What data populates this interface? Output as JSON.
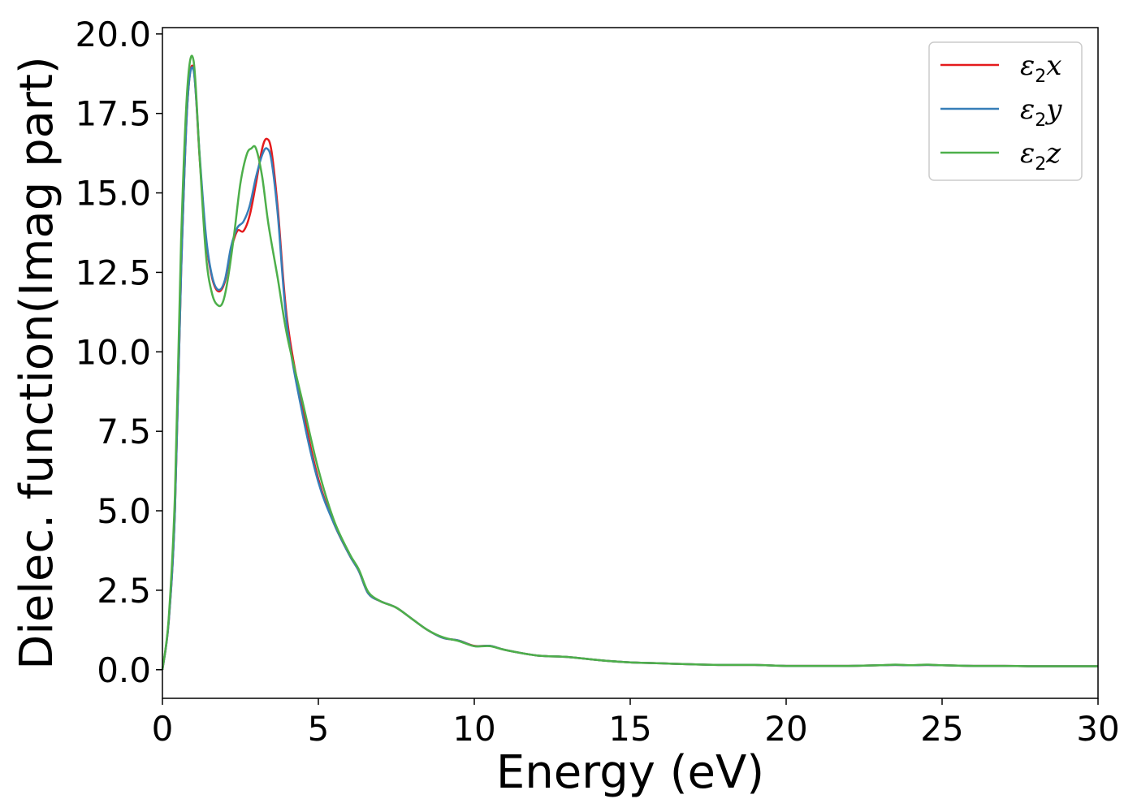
{
  "chart_data": {
    "type": "line",
    "title": "",
    "xlabel": "Energy (eV)",
    "ylabel": "Dielec. function(Imag part)",
    "xlim": [
      0,
      30
    ],
    "ylim": [
      -0.9,
      20.2
    ],
    "x_ticks": [
      0,
      5,
      10,
      15,
      20,
      25,
      30
    ],
    "x_tick_labels": [
      "0",
      "5",
      "10",
      "15",
      "20",
      "25",
      "30"
    ],
    "y_ticks": [
      0.0,
      2.5,
      5.0,
      7.5,
      10.0,
      12.5,
      15.0,
      17.5,
      20.0
    ],
    "y_tick_labels": [
      "0.0",
      "2.5",
      "5.0",
      "7.5",
      "10.0",
      "12.5",
      "15.0",
      "17.5",
      "20.0"
    ],
    "grid": false,
    "legend_position": "top-right",
    "series": [
      {
        "name_base": "ε",
        "name_sub": "2",
        "name_suffix": "x",
        "color": "#e41a1c",
        "x": [
          0,
          0.2,
          0.4,
          0.6,
          0.8,
          1.0,
          1.2,
          1.4,
          1.6,
          1.8,
          2.0,
          2.2,
          2.4,
          2.6,
          2.8,
          3.0,
          3.2,
          3.35,
          3.5,
          3.7,
          4.0,
          4.5,
          5.0,
          5.5,
          6.0,
          6.3,
          6.6,
          7.0,
          7.5,
          8.0,
          8.5,
          9.0,
          9.5,
          10.0,
          10.5,
          11.0,
          12.0,
          13.0,
          14.0,
          15.0,
          16.0,
          17.0,
          18.0,
          19.0,
          20.0,
          21.0,
          22.0,
          23.0,
          23.5,
          24.0,
          24.5,
          25.0,
          26.0,
          27.0,
          28.0,
          29.0,
          30.0
        ],
        "y": [
          0.0,
          1.5,
          5.0,
          12.5,
          17.8,
          18.9,
          16.0,
          13.5,
          12.3,
          11.9,
          12.2,
          13.2,
          13.8,
          13.8,
          14.3,
          15.3,
          16.4,
          16.7,
          16.3,
          14.5,
          11.0,
          8.2,
          6.0,
          4.6,
          3.6,
          3.1,
          2.4,
          2.15,
          1.95,
          1.6,
          1.25,
          1.0,
          0.92,
          0.75,
          0.75,
          0.62,
          0.45,
          0.4,
          0.3,
          0.23,
          0.2,
          0.17,
          0.15,
          0.15,
          0.12,
          0.12,
          0.12,
          0.14,
          0.15,
          0.14,
          0.15,
          0.14,
          0.12,
          0.12,
          0.11,
          0.11,
          0.11
        ]
      },
      {
        "name_base": "ε",
        "name_sub": "2",
        "name_suffix": "y",
        "color": "#377eb8",
        "x": [
          0,
          0.2,
          0.4,
          0.6,
          0.8,
          1.0,
          1.2,
          1.4,
          1.6,
          1.8,
          2.0,
          2.2,
          2.4,
          2.6,
          2.8,
          3.0,
          3.2,
          3.35,
          3.5,
          3.7,
          4.0,
          4.5,
          5.0,
          5.5,
          6.0,
          6.3,
          6.6,
          7.0,
          7.5,
          8.0,
          8.5,
          9.0,
          9.5,
          10.0,
          10.5,
          11.0,
          12.0,
          13.0,
          14.0,
          15.0,
          16.0,
          17.0,
          18.0,
          19.0,
          20.0,
          21.0,
          22.0,
          23.0,
          23.5,
          24.0,
          24.5,
          25.0,
          26.0,
          27.0,
          28.0,
          29.0,
          30.0
        ],
        "y": [
          0.0,
          1.5,
          5.0,
          12.5,
          17.8,
          18.85,
          16.1,
          13.6,
          12.35,
          11.95,
          12.25,
          13.3,
          13.9,
          14.1,
          14.6,
          15.5,
          16.2,
          16.4,
          16.0,
          14.3,
          10.8,
          8.0,
          5.9,
          4.6,
          3.6,
          3.1,
          2.4,
          2.15,
          1.95,
          1.6,
          1.25,
          1.0,
          0.92,
          0.74,
          0.75,
          0.62,
          0.45,
          0.4,
          0.3,
          0.23,
          0.2,
          0.17,
          0.15,
          0.15,
          0.12,
          0.12,
          0.12,
          0.14,
          0.15,
          0.14,
          0.15,
          0.14,
          0.12,
          0.12,
          0.11,
          0.11,
          0.11
        ]
      },
      {
        "name_base": "ε",
        "name_sub": "2",
        "name_suffix": "z",
        "color": "#4daf4a",
        "x": [
          0,
          0.2,
          0.4,
          0.6,
          0.8,
          1.0,
          1.2,
          1.4,
          1.6,
          1.8,
          1.95,
          2.1,
          2.3,
          2.5,
          2.7,
          2.85,
          3.0,
          3.2,
          3.4,
          3.7,
          4.0,
          4.5,
          5.0,
          5.5,
          6.0,
          6.3,
          6.6,
          7.0,
          7.5,
          8.0,
          8.5,
          9.0,
          9.5,
          10.0,
          10.5,
          11.0,
          12.0,
          13.0,
          14.0,
          15.0,
          16.0,
          17.0,
          18.0,
          19.0,
          20.0,
          21.0,
          22.0,
          23.0,
          23.5,
          24.0,
          24.5,
          25.0,
          26.0,
          27.0,
          28.0,
          29.0,
          30.0
        ],
        "y": [
          0.0,
          1.6,
          5.5,
          13.5,
          18.3,
          19.15,
          16.0,
          13.0,
          11.8,
          11.45,
          11.6,
          12.3,
          13.7,
          15.3,
          16.2,
          16.4,
          16.4,
          15.5,
          14.0,
          12.3,
          10.5,
          8.4,
          6.3,
          4.7,
          3.65,
          3.15,
          2.45,
          2.15,
          1.95,
          1.6,
          1.25,
          1.02,
          0.9,
          0.74,
          0.74,
          0.62,
          0.45,
          0.4,
          0.3,
          0.23,
          0.2,
          0.17,
          0.15,
          0.15,
          0.12,
          0.12,
          0.12,
          0.14,
          0.16,
          0.14,
          0.16,
          0.14,
          0.12,
          0.12,
          0.11,
          0.11,
          0.11
        ]
      }
    ]
  }
}
